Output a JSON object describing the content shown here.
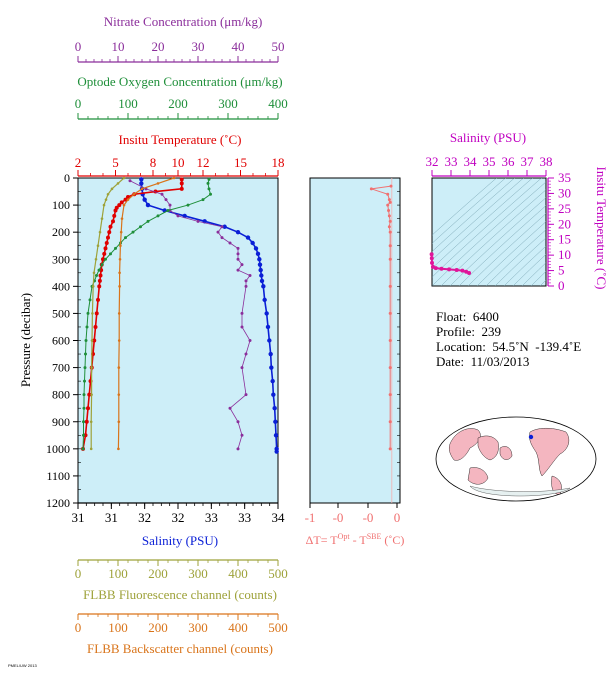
{
  "colors": {
    "nitrate": "#8b2e9b",
    "oxygen": "#1f8f3a",
    "temperature": "#e00000",
    "salinity": "#0a1fd6",
    "fluorescence": "#9ea23a",
    "backscatter": "#d9741a",
    "delta_t": "#f07070",
    "ts_curve": "#e0169a",
    "ts_axis": "#c000c0",
    "panel_bg": "#cdeef8"
  },
  "labels": {
    "nitrate": "Nitrate Concentration (μm/kg)",
    "oxygen": "Optode Oxygen Concentration (μm/kg)",
    "temperature": "Insitu Temperature (˚C)",
    "pressure": "Pressure (decibar)",
    "salinity": "Salinity (PSU)",
    "fluorescence": "FLBB Fluorescence channel (counts)",
    "backscatter": "FLBB Backscatter channel (counts)",
    "ts_salinity": "Salinity (PSU)",
    "ts_temperature": "Insitu Temperature (˚C)"
  },
  "info": {
    "float": "Float:  6400",
    "profile": "Profile:  239",
    "location": "Location:  54.5˚N  -139.4˚E",
    "date": "Date:  11/03/2013"
  },
  "chart_data": [
    {
      "type": "line",
      "panel": "profile",
      "y_axis": {
        "label": "Pressure (decibar)",
        "range": [
          1200,
          0
        ],
        "ticks": [
          0,
          100,
          200,
          300,
          400,
          500,
          600,
          700,
          800,
          900,
          1000,
          1100,
          1200
        ]
      },
      "axes": {
        "temperature": {
          "range": [
            2,
            18
          ],
          "ticks": [
            2,
            5,
            8,
            10,
            12,
            15,
            18
          ]
        },
        "nitrate": {
          "range": [
            0,
            50
          ],
          "ticks": [
            0,
            10,
            20,
            30,
            40,
            50
          ]
        },
        "oxygen": {
          "range": [
            0,
            400
          ],
          "ticks": [
            0,
            100,
            200,
            300,
            400
          ]
        },
        "salinity": {
          "range": [
            31,
            34
          ],
          "ticks": [
            31,
            31.5,
            32,
            32.5,
            33,
            33.5,
            34
          ],
          "tick_labels": [
            "31",
            "31",
            "32",
            "32",
            "33",
            "33",
            "34"
          ]
        },
        "fluorescence": {
          "range": [
            0,
            500
          ],
          "ticks": [
            0,
            100,
            200,
            300,
            400,
            500
          ]
        },
        "backscatter": {
          "range": [
            0,
            500
          ],
          "ticks": [
            0,
            100,
            200,
            300,
            400,
            500
          ]
        }
      },
      "series": [
        {
          "name": "Salinity",
          "axis": "salinity",
          "pressure": [
            5,
            20,
            40,
            60,
            80,
            100,
            120,
            140,
            160,
            180,
            200,
            220,
            240,
            260,
            280,
            300,
            320,
            340,
            360,
            380,
            400,
            450,
            500,
            550,
            600,
            650,
            700,
            750,
            800,
            850,
            900,
            950,
            1000,
            1010
          ],
          "values": [
            31.95,
            31.95,
            31.96,
            31.97,
            32.0,
            32.05,
            32.3,
            32.6,
            32.9,
            33.2,
            33.4,
            33.55,
            33.62,
            33.67,
            33.7,
            33.72,
            33.73,
            33.74,
            33.75,
            33.76,
            33.78,
            33.8,
            33.83,
            33.85,
            33.87,
            33.89,
            33.9,
            33.92,
            33.93,
            33.95,
            33.96,
            33.97,
            33.98,
            33.98
          ]
        },
        {
          "name": "Temperature",
          "axis": "temperature",
          "pressure": [
            5,
            20,
            40,
            50,
            60,
            70,
            80,
            90,
            100,
            110,
            120,
            140,
            160,
            180,
            200,
            220,
            240,
            260,
            280,
            300,
            320,
            340,
            360,
            380,
            400,
            450,
            500,
            550,
            600,
            650,
            700,
            750,
            800,
            850,
            900,
            950,
            1000
          ],
          "values": [
            10.3,
            10.3,
            10.3,
            8.2,
            6.5,
            6.0,
            5.8,
            5.5,
            5.3,
            5.1,
            5.0,
            4.9,
            4.8,
            4.6,
            4.5,
            4.4,
            4.3,
            4.2,
            4.1,
            4.0,
            3.9,
            3.85,
            3.8,
            3.75,
            3.7,
            3.6,
            3.5,
            3.4,
            3.3,
            3.2,
            3.1,
            3.0,
            2.9,
            2.8,
            2.7,
            2.6,
            2.4
          ]
        },
        {
          "name": "Nitrate",
          "axis": "nitrate",
          "pressure": [
            10,
            40,
            60,
            80,
            100,
            120,
            140,
            160,
            180,
            200,
            220,
            240,
            260,
            280,
            300,
            320,
            340,
            360,
            380,
            400,
            500,
            550,
            600,
            650,
            700,
            800,
            850,
            900,
            950,
            1000
          ],
          "values": [
            13,
            17,
            21,
            22,
            23,
            23,
            25,
            30,
            36,
            35,
            36,
            38,
            40,
            40,
            40,
            41,
            40,
            43,
            42,
            42,
            41,
            41,
            43,
            42,
            41,
            42,
            38,
            40,
            41,
            40
          ]
        },
        {
          "name": "Oxygen",
          "axis": "oxygen",
          "pressure": [
            5,
            20,
            40,
            60,
            80,
            100,
            120,
            140,
            160,
            180,
            200,
            220,
            240,
            260,
            280,
            300,
            320,
            340,
            360,
            380,
            400,
            450,
            500,
            550,
            600,
            650,
            700,
            750,
            800,
            850,
            900,
            950,
            1000
          ],
          "values": [
            262,
            260,
            262,
            265,
            250,
            220,
            180,
            160,
            140,
            125,
            110,
            95,
            85,
            75,
            65,
            55,
            48,
            42,
            37,
            33,
            28,
            24,
            20,
            18,
            16,
            15,
            14,
            13,
            12,
            12,
            11,
            11,
            10
          ]
        },
        {
          "name": "Fluorescence",
          "axis": "fluorescence",
          "pressure": [
            0,
            20,
            40,
            60,
            80,
            100,
            150,
            200,
            250,
            300,
            350,
            400,
            500,
            600,
            700,
            800,
            900,
            1000
          ],
          "values": [
            115,
            100,
            85,
            75,
            70,
            65,
            60,
            55,
            50,
            45,
            40,
            38,
            36,
            35,
            34,
            34,
            33,
            33
          ]
        },
        {
          "name": "Backscatter",
          "axis": "backscatter",
          "pressure": [
            0,
            20,
            40,
            60,
            80,
            100,
            150,
            200,
            250,
            300,
            350,
            400,
            500,
            600,
            700,
            800,
            900,
            1000
          ],
          "values": [
            240,
            200,
            160,
            140,
            125,
            115,
            110,
            108,
            106,
            105,
            104,
            104,
            103,
            103,
            102,
            102,
            102,
            101
          ]
        }
      ]
    },
    {
      "type": "line",
      "panel": "delta_t",
      "xlabel": "ΔT= T^Opt - T^SBE (˚C)",
      "xlim": [
        -1,
        0.1
      ],
      "x_tick_labels": [
        "-1",
        "-0",
        "-0",
        "0",
        "0"
      ],
      "series": [
        {
          "name": "ΔT",
          "pressure": [
            30,
            40,
            60,
            80,
            90,
            100,
            120,
            140,
            160,
            180,
            200,
            250,
            300,
            400,
            500,
            600,
            700,
            800,
            900,
            1000
          ],
          "values": [
            -0.01,
            -0.25,
            -0.05,
            -0.03,
            -0.02,
            -0.05,
            -0.04,
            -0.03,
            -0.02,
            -0.03,
            -0.02,
            -0.02,
            -0.02,
            -0.02,
            -0.02,
            -0.02,
            -0.02,
            -0.02,
            -0.02,
            -0.02
          ]
        }
      ]
    },
    {
      "type": "line",
      "panel": "ts",
      "title": "Salinity (PSU)",
      "xlabel": "Salinity (PSU)",
      "ylabel": "Insitu Temperature (˚C)",
      "xlim": [
        32,
        38
      ],
      "ylim": [
        0,
        35
      ],
      "x_ticks": [
        "32",
        "33",
        "34",
        "35",
        "36",
        "37",
        "38"
      ],
      "y_ticks": [
        "0",
        "5",
        "10",
        "15",
        "20",
        "25",
        "30",
        "35"
      ],
      "series": [
        {
          "name": "T-S",
          "salinity": [
            31.98,
            31.99,
            32.0,
            32.05,
            32.2,
            32.5,
            32.9,
            33.3,
            33.6,
            33.8,
            33.95
          ],
          "temperature": [
            10.3,
            9.0,
            7.5,
            6.2,
            5.8,
            5.6,
            5.4,
            5.2,
            5.0,
            4.6,
            4.2
          ]
        }
      ]
    }
  ]
}
